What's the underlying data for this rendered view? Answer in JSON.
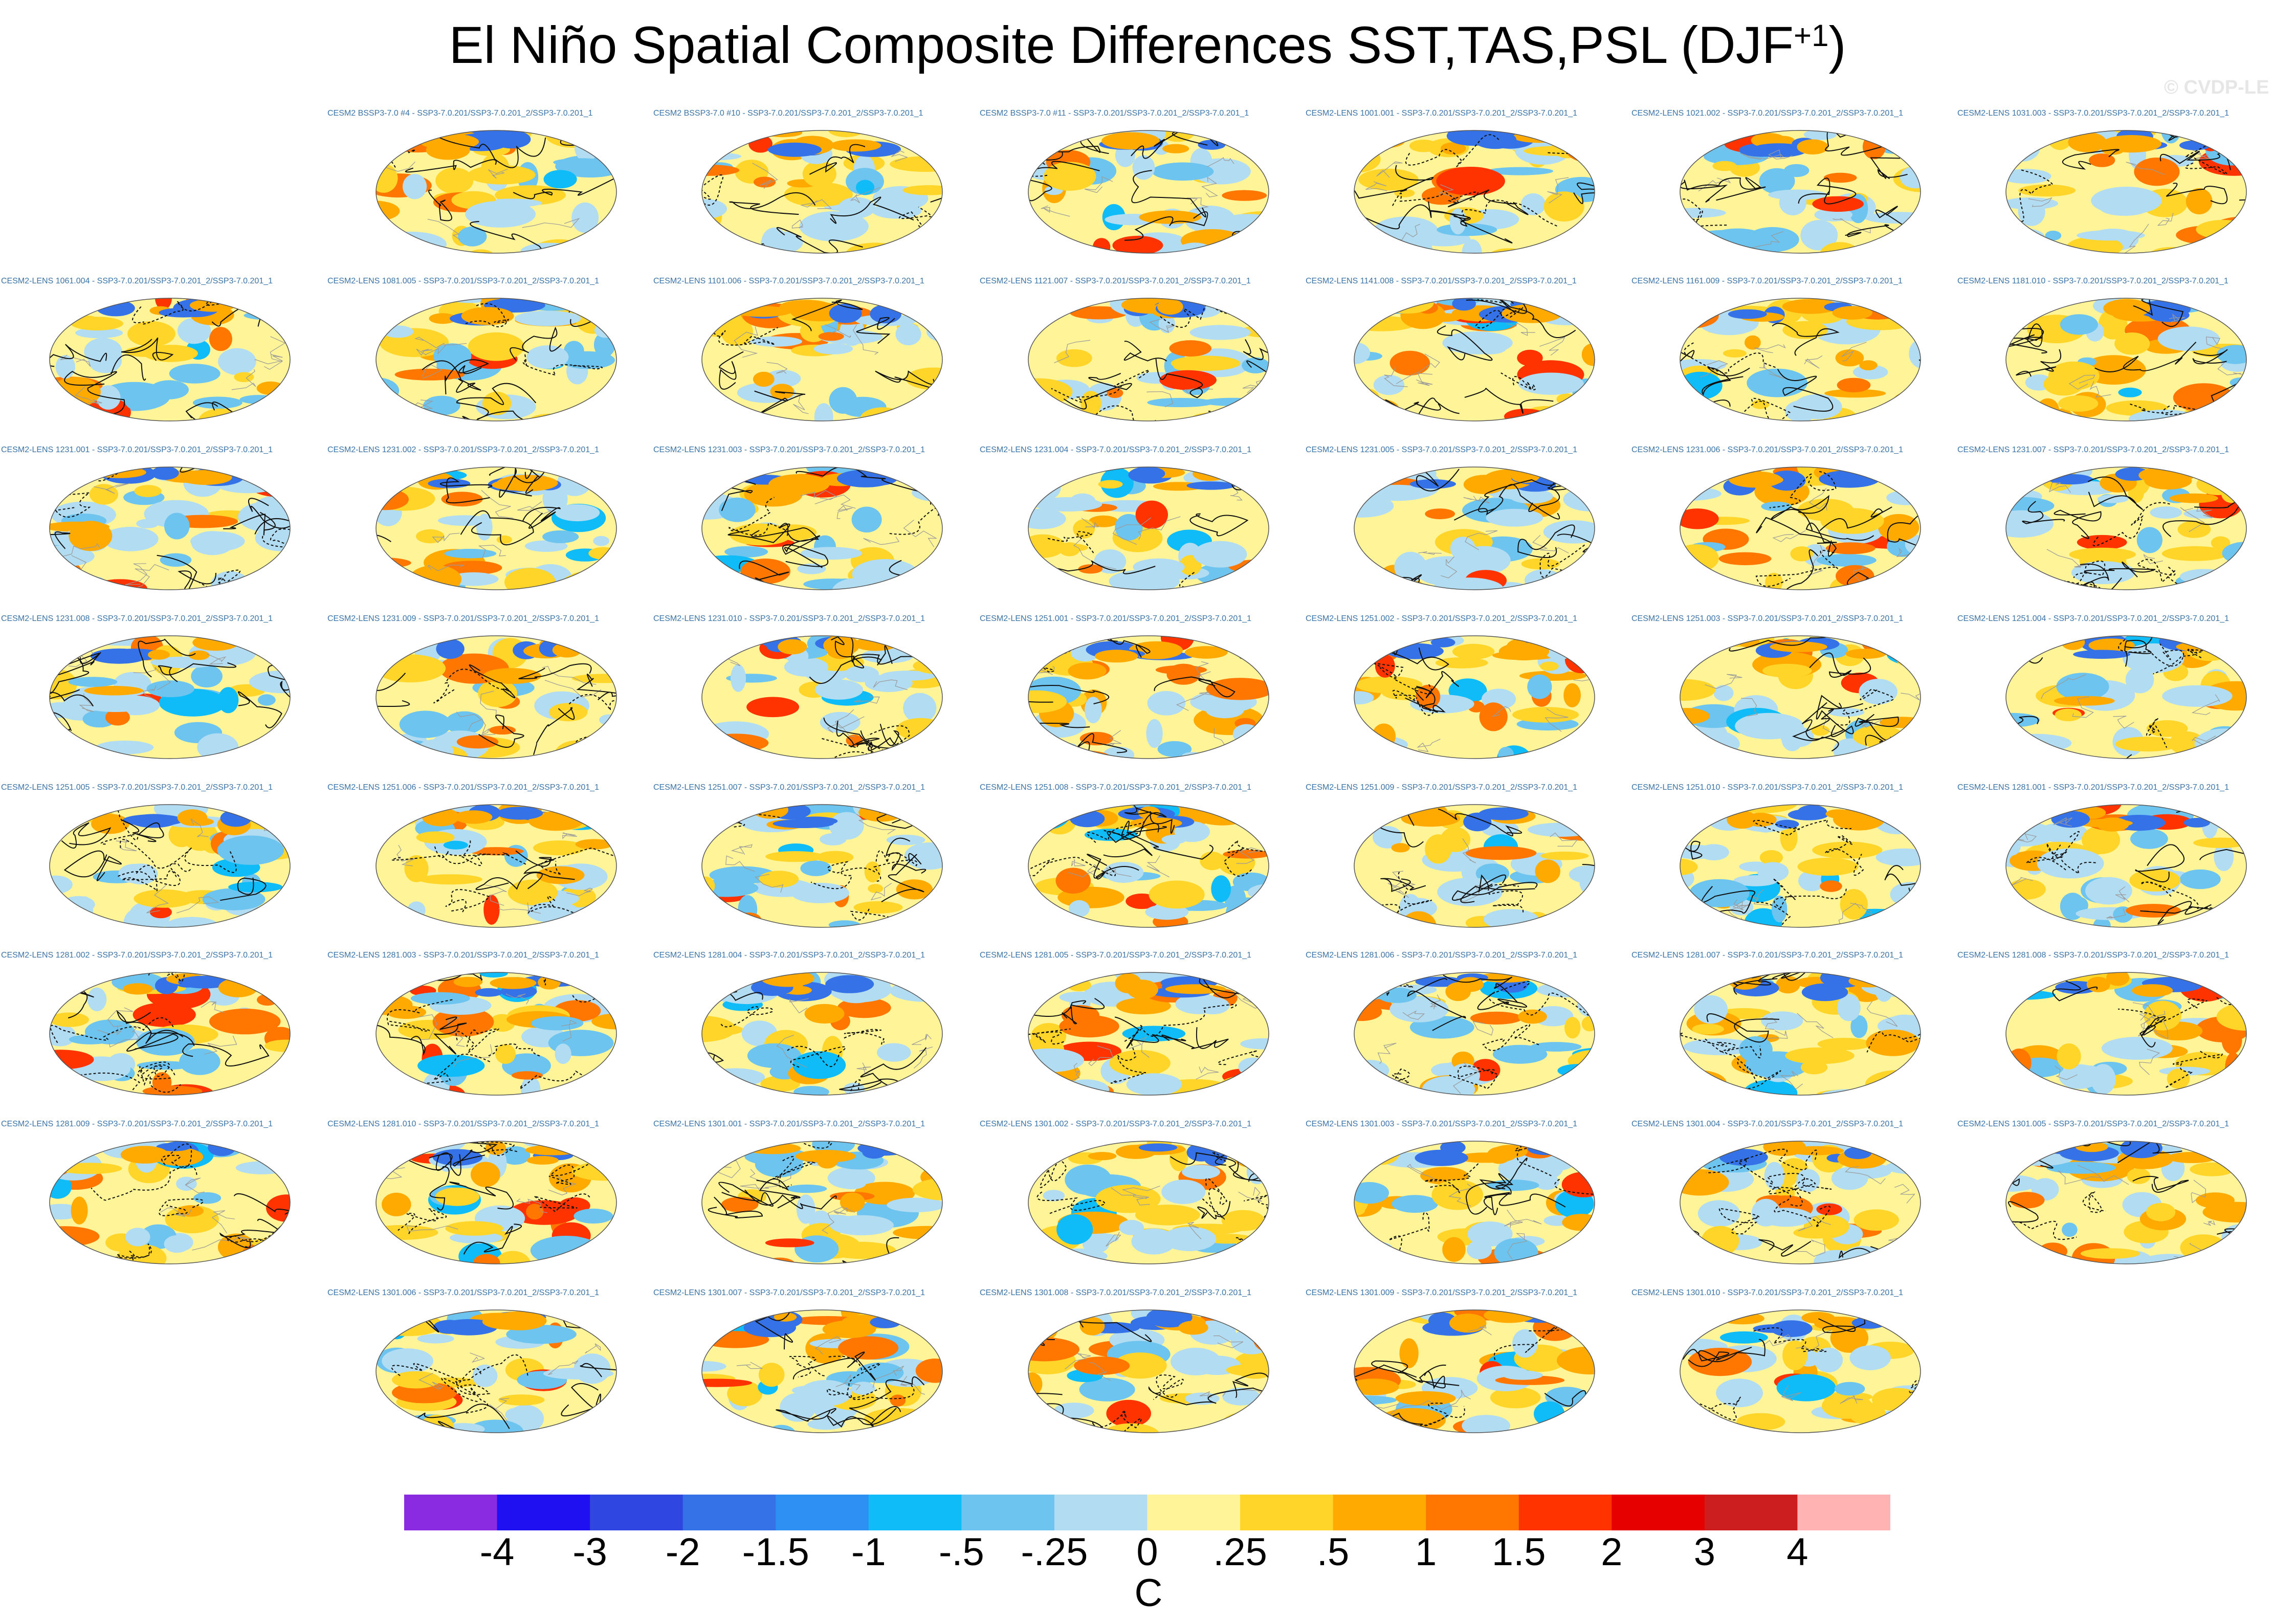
{
  "title": {
    "main": "El Niño Spatial Composite Differences SST,TAS,PSL (DJF",
    "superscript": "+1",
    "suffix": ")"
  },
  "watermark": "© CVDP-LE",
  "chart_data": {
    "type": "map-panel-grid",
    "title": "El Niño Spatial Composite Differences SST,TAS,PSL (DJF+1)",
    "variables": [
      "SST",
      "TAS",
      "PSL"
    ],
    "season": "DJF+1",
    "panels": [
      {
        "label": "CESM2 BSSP3-7.0 #4 - SSP3-7.0.201/SSP3-7.0.201_2/SSP3-7.0.201_1"
      },
      {
        "label": "CESM2 BSSP3-7.0 #10 - SSP3-7.0.201/SSP3-7.0.201_2/SSP3-7.0.201_1"
      },
      {
        "label": "CESM2 BSSP3-7.0 #11 - SSP3-7.0.201/SSP3-7.0.201_2/SSP3-7.0.201_1"
      },
      {
        "label": "CESM2-LENS 1001.001 - SSP3-7.0.201/SSP3-7.0.201_2/SSP3-7.0.201_1"
      },
      {
        "label": "CESM2-LENS 1021.002 - SSP3-7.0.201/SSP3-7.0.201_2/SSP3-7.0.201_1"
      },
      {
        "label": "CESM2-LENS 1031.003 - SSP3-7.0.201/SSP3-7.0.201_2/SSP3-7.0.201_1"
      },
      {
        "label": "CESM2-LENS 1061.004 - SSP3-7.0.201/SSP3-7.0.201_2/SSP3-7.0.201_1"
      },
      {
        "label": "CESM2-LENS 1081.005 - SSP3-7.0.201/SSP3-7.0.201_2/SSP3-7.0.201_1"
      },
      {
        "label": "CESM2-LENS 1101.006 - SSP3-7.0.201/SSP3-7.0.201_2/SSP3-7.0.201_1"
      },
      {
        "label": "CESM2-LENS 1121.007 - SSP3-7.0.201/SSP3-7.0.201_2/SSP3-7.0.201_1"
      },
      {
        "label": "CESM2-LENS 1141.008 - SSP3-7.0.201/SSP3-7.0.201_2/SSP3-7.0.201_1"
      },
      {
        "label": "CESM2-LENS 1161.009 - SSP3-7.0.201/SSP3-7.0.201_2/SSP3-7.0.201_1"
      },
      {
        "label": "CESM2-LENS 1181.010 - SSP3-7.0.201/SSP3-7.0.201_2/SSP3-7.0.201_1"
      },
      {
        "label": "CESM2-LENS 1231.001 - SSP3-7.0.201/SSP3-7.0.201_2/SSP3-7.0.201_1"
      },
      {
        "label": "CESM2-LENS 1231.002 - SSP3-7.0.201/SSP3-7.0.201_2/SSP3-7.0.201_1"
      },
      {
        "label": "CESM2-LENS 1231.003 - SSP3-7.0.201/SSP3-7.0.201_2/SSP3-7.0.201_1"
      },
      {
        "label": "CESM2-LENS 1231.004 - SSP3-7.0.201/SSP3-7.0.201_2/SSP3-7.0.201_1"
      },
      {
        "label": "CESM2-LENS 1231.005 - SSP3-7.0.201/SSP3-7.0.201_2/SSP3-7.0.201_1"
      },
      {
        "label": "CESM2-LENS 1231.006 - SSP3-7.0.201/SSP3-7.0.201_2/SSP3-7.0.201_1"
      },
      {
        "label": "CESM2-LENS 1231.007 - SSP3-7.0.201/SSP3-7.0.201_2/SSP3-7.0.201_1"
      },
      {
        "label": "CESM2-LENS 1231.008 - SSP3-7.0.201/SSP3-7.0.201_2/SSP3-7.0.201_1"
      },
      {
        "label": "CESM2-LENS 1231.009 - SSP3-7.0.201/SSP3-7.0.201_2/SSP3-7.0.201_1"
      },
      {
        "label": "CESM2-LENS 1231.010 - SSP3-7.0.201/SSP3-7.0.201_2/SSP3-7.0.201_1"
      },
      {
        "label": "CESM2-LENS 1251.001 - SSP3-7.0.201/SSP3-7.0.201_2/SSP3-7.0.201_1"
      },
      {
        "label": "CESM2-LENS 1251.002 - SSP3-7.0.201/SSP3-7.0.201_2/SSP3-7.0.201_1"
      },
      {
        "label": "CESM2-LENS 1251.003 - SSP3-7.0.201/SSP3-7.0.201_2/SSP3-7.0.201_1"
      },
      {
        "label": "CESM2-LENS 1251.004 - SSP3-7.0.201/SSP3-7.0.201_2/SSP3-7.0.201_1"
      },
      {
        "label": "CESM2-LENS 1251.005 - SSP3-7.0.201/SSP3-7.0.201_2/SSP3-7.0.201_1"
      },
      {
        "label": "CESM2-LENS 1251.006 - SSP3-7.0.201/SSP3-7.0.201_2/SSP3-7.0.201_1"
      },
      {
        "label": "CESM2-LENS 1251.007 - SSP3-7.0.201/SSP3-7.0.201_2/SSP3-7.0.201_1"
      },
      {
        "label": "CESM2-LENS 1251.008 - SSP3-7.0.201/SSP3-7.0.201_2/SSP3-7.0.201_1"
      },
      {
        "label": "CESM2-LENS 1251.009 - SSP3-7.0.201/SSP3-7.0.201_2/SSP3-7.0.201_1"
      },
      {
        "label": "CESM2-LENS 1251.010 - SSP3-7.0.201/SSP3-7.0.201_2/SSP3-7.0.201_1"
      },
      {
        "label": "CESM2-LENS 1281.001 - SSP3-7.0.201/SSP3-7.0.201_2/SSP3-7.0.201_1"
      },
      {
        "label": "CESM2-LENS 1281.002 - SSP3-7.0.201/SSP3-7.0.201_2/SSP3-7.0.201_1"
      },
      {
        "label": "CESM2-LENS 1281.003 - SSP3-7.0.201/SSP3-7.0.201_2/SSP3-7.0.201_1"
      },
      {
        "label": "CESM2-LENS 1281.004 - SSP3-7.0.201/SSP3-7.0.201_2/SSP3-7.0.201_1"
      },
      {
        "label": "CESM2-LENS 1281.005 - SSP3-7.0.201/SSP3-7.0.201_2/SSP3-7.0.201_1"
      },
      {
        "label": "CESM2-LENS 1281.006 - SSP3-7.0.201/SSP3-7.0.201_2/SSP3-7.0.201_1"
      },
      {
        "label": "CESM2-LENS 1281.007 - SSP3-7.0.201/SSP3-7.0.201_2/SSP3-7.0.201_1"
      },
      {
        "label": "CESM2-LENS 1281.008 - SSP3-7.0.201/SSP3-7.0.201_2/SSP3-7.0.201_1"
      },
      {
        "label": "CESM2-LENS 1281.009 - SSP3-7.0.201/SSP3-7.0.201_2/SSP3-7.0.201_1"
      },
      {
        "label": "CESM2-LENS 1281.010 - SSP3-7.0.201/SSP3-7.0.201_2/SSP3-7.0.201_1"
      },
      {
        "label": "CESM2-LENS 1301.001 - SSP3-7.0.201/SSP3-7.0.201_2/SSP3-7.0.201_1"
      },
      {
        "label": "CESM2-LENS 1301.002 - SSP3-7.0.201/SSP3-7.0.201_2/SSP3-7.0.201_1"
      },
      {
        "label": "CESM2-LENS 1301.003 - SSP3-7.0.201/SSP3-7.0.201_2/SSP3-7.0.201_1"
      },
      {
        "label": "CESM2-LENS 1301.004 - SSP3-7.0.201/SSP3-7.0.201_2/SSP3-7.0.201_1"
      },
      {
        "label": "CESM2-LENS 1301.005 - SSP3-7.0.201/SSP3-7.0.201_2/SSP3-7.0.201_1"
      },
      {
        "label": "CESM2-LENS 1301.006 - SSP3-7.0.201/SSP3-7.0.201_2/SSP3-7.0.201_1"
      },
      {
        "label": "CESM2-LENS 1301.007 - SSP3-7.0.201/SSP3-7.0.201_2/SSP3-7.0.201_1"
      },
      {
        "label": "CESM2-LENS 1301.008 - SSP3-7.0.201/SSP3-7.0.201_2/SSP3-7.0.201_1"
      },
      {
        "label": "CESM2-LENS 1301.009 - SSP3-7.0.201/SSP3-7.0.201_2/SSP3-7.0.201_1"
      },
      {
        "label": "CESM2-LENS 1301.010 - SSP3-7.0.201/SSP3-7.0.201_2/SSP3-7.0.201_1"
      }
    ],
    "colorbar": {
      "units": "C",
      "tick_labels": [
        "-4",
        "-3",
        "-2",
        "-1.5",
        "-1",
        "-.5",
        "-.25",
        "0",
        ".25",
        ".5",
        "1",
        "1.5",
        "2",
        "3",
        "4"
      ],
      "colors": [
        "#8a2be2",
        "#1e10f0",
        "#2f47e0",
        "#3572e8",
        "#2f90f4",
        "#10bcf7",
        "#6cc4ef",
        "#b1dcf1",
        "#fff598",
        "#ffd52a",
        "#ffaa00",
        "#ff7700",
        "#ff3300",
        "#e60000",
        "#cc1e1e",
        "#ffb3b3"
      ]
    }
  }
}
